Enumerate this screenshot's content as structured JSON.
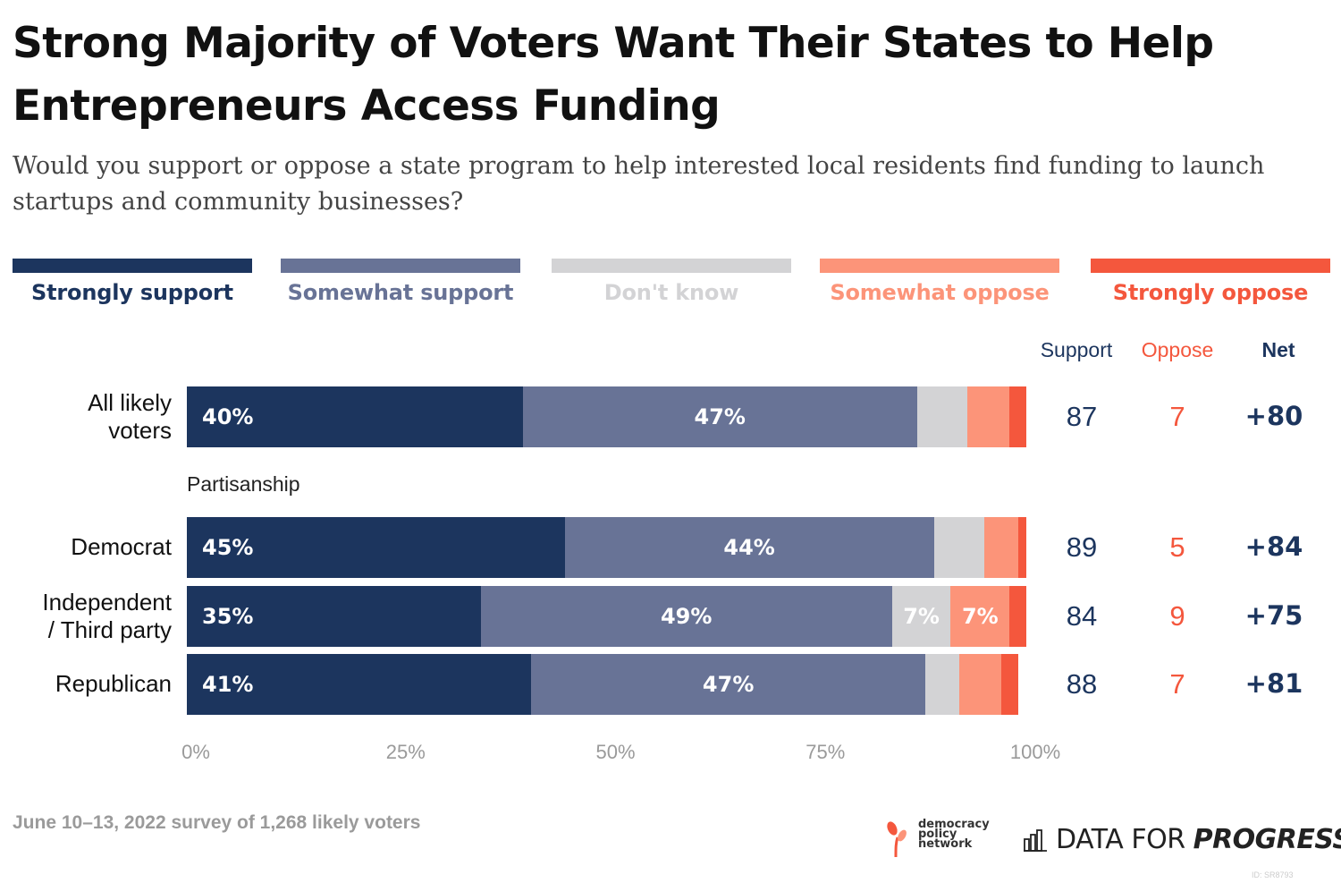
{
  "title": "Strong Majority of Voters Want Their States to Help Entrepreneurs Access Funding",
  "subtitle": "Would you support or oppose a state program to help interested local residents find funding to launch startups and community businesses?",
  "colors": {
    "strongly_support": "#1c355e",
    "somewhat_support": "#687396",
    "dont_know": "#d3d3d5",
    "somewhat_oppose": "#fc9479",
    "strongly_oppose": "#f4573d"
  },
  "legend": [
    "Strongly support",
    "Somewhat support",
    "Don't know",
    "Somewhat oppose",
    "Strongly oppose"
  ],
  "column_headers": {
    "support": "Support",
    "oppose": "Oppose",
    "net": "Net"
  },
  "group_label": "Partisanship",
  "chart_data": {
    "type": "bar",
    "orientation": "horizontal",
    "stacked": true,
    "categories": [
      "All likely voters",
      "Democrat",
      "Independent / Third party",
      "Republican"
    ],
    "series": [
      {
        "name": "Strongly support",
        "values": [
          40,
          45,
          35,
          41
        ]
      },
      {
        "name": "Somewhat support",
        "values": [
          47,
          44,
          49,
          47
        ]
      },
      {
        "name": "Don't know",
        "values": [
          6,
          6,
          7,
          4
        ]
      },
      {
        "name": "Somewhat oppose",
        "values": [
          5,
          4,
          7,
          5
        ]
      },
      {
        "name": "Strongly oppose",
        "values": [
          2,
          1,
          2,
          2
        ]
      }
    ],
    "segment_labels": [
      [
        "40%",
        "47%",
        "",
        "",
        ""
      ],
      [
        "45%",
        "44%",
        "",
        "",
        ""
      ],
      [
        "35%",
        "49%",
        "7%",
        "7%",
        ""
      ],
      [
        "41%",
        "47%",
        "",
        "",
        ""
      ]
    ],
    "support": [
      "87",
      "89",
      "84",
      "88"
    ],
    "oppose": [
      "7",
      "5",
      "9",
      "7"
    ],
    "net": [
      "+80",
      "+84",
      "+75",
      "+81"
    ],
    "xlim": [
      0,
      100
    ],
    "xticks": [
      "0%",
      "25%",
      "50%",
      "75%",
      "100%"
    ],
    "legend_position": "top",
    "grid": false
  },
  "footer": "June 10–13, 2022 survey of 1,268 likely voters",
  "logos": {
    "dpn": [
      "democracy",
      "policy",
      "network"
    ],
    "dfp_plain": "DATA FOR ",
    "dfp_emph": "PROGRESS"
  },
  "id_text": "ID: SR8793"
}
